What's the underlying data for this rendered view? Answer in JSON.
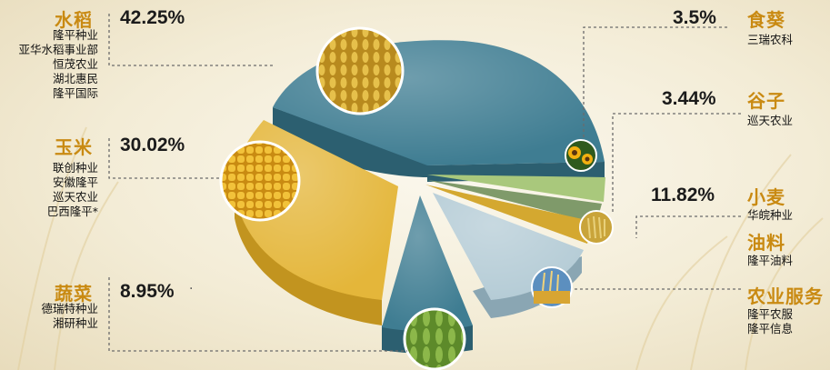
{
  "chart_data": {
    "type": "pie",
    "categories": [
      {
        "key": "rice",
        "label": "水稻",
        "value_label": "42.25%",
        "value": 42.25,
        "color": "#3f7d92",
        "companies": [
          "隆平种业",
          "亚华水稻事业部",
          "恒茂农业",
          "湖北惠民",
          "隆平国际"
        ]
      },
      {
        "key": "sunflower",
        "label": "食葵",
        "value_label": "3.5%",
        "value": 3.5,
        "color": "#a9c87c",
        "companies": [
          "三瑞农科"
        ]
      },
      {
        "key": "millet",
        "label": "谷子",
        "value_label": "3.44%",
        "value": 3.44,
        "color": "#5b8a95",
        "companies": [
          "巡天农业"
        ]
      },
      {
        "key": "wheat",
        "label": "小麦",
        "value_label": "11.82%",
        "value": 11.82,
        "color": "#b5ccd6",
        "companies": [
          "华皖种业"
        ]
      },
      {
        "key": "oil",
        "label": "油料",
        "value_label": "",
        "value": 2.0,
        "color": "#d4a830",
        "companies": [
          "隆平油料"
        ]
      },
      {
        "key": "services",
        "label": "农业服务",
        "value_label": "",
        "value": 0,
        "color": "#7bab5a",
        "companies": [
          "隆平农服",
          "隆平信息"
        ]
      },
      {
        "key": "vegetable",
        "label": "蔬菜",
        "value_label": "8.95%",
        "value": 8.95,
        "color": "#3f7d92",
        "companies": [
          "德瑞特种业",
          "湘研种业"
        ]
      },
      {
        "key": "corn",
        "label": "玉米",
        "value_label": "30.02%",
        "value": 30.02,
        "color": "#e4b63a",
        "companies": [
          "联创种业",
          "安徽隆平",
          "巡天农业",
          "巴西隆平*"
        ]
      }
    ],
    "grid": false,
    "legend": "none"
  }
}
